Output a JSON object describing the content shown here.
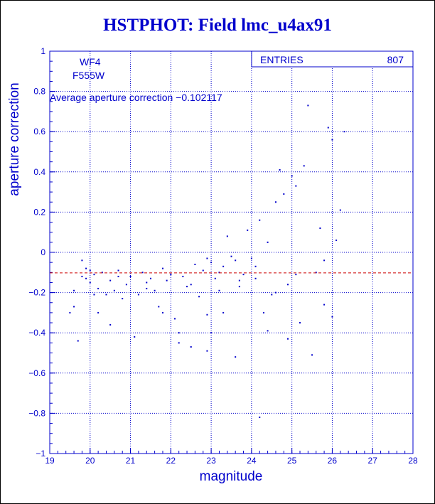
{
  "chart_data": {
    "type": "scatter",
    "title": "HSTPHOT: Field lmc_u4ax91",
    "xlabel": "magnitude",
    "ylabel": "aperture correction",
    "xlim": [
      19,
      28
    ],
    "ylim": [
      -1,
      1
    ],
    "x_ticks": [
      19,
      20,
      21,
      22,
      23,
      24,
      25,
      26,
      27,
      28
    ],
    "y_ticks": [
      -1,
      -0.8,
      -0.6,
      -0.4,
      -0.2,
      0,
      0.2,
      0.4,
      0.6,
      0.8,
      1
    ],
    "x_tick_labels": [
      "19",
      "20",
      "21",
      "22",
      "23",
      "24",
      "25",
      "26",
      "27",
      "28"
    ],
    "y_tick_labels": [
      "−1",
      "−0.8",
      "−0.6",
      "−0.4",
      "−0.2",
      "0",
      "0.2",
      "0.4",
      "0.6",
      "0.8",
      "1"
    ],
    "grid": true,
    "stats_box": {
      "label": "ENTRIES",
      "value": "807",
      "placement": "top-right"
    },
    "annotations": {
      "chip": "WF4",
      "filter": "F555W",
      "average_text": "Average aperture correction −0.102117"
    },
    "reference_line": {
      "y": -0.102117,
      "color": "#cc0000",
      "style": "dashed"
    },
    "marker_color": "#0000cc",
    "entries": 807,
    "points": [
      [
        19.5,
        -0.3
      ],
      [
        19.6,
        -0.27
      ],
      [
        19.7,
        -0.44
      ],
      [
        19.8,
        -0.12
      ],
      [
        19.9,
        -0.08
      ],
      [
        20.0,
        -0.15
      ],
      [
        20.1,
        -0.11
      ],
      [
        20.2,
        -0.18
      ],
      [
        19.9,
        -0.13
      ],
      [
        20.0,
        -0.09
      ],
      [
        20.3,
        -0.1
      ],
      [
        20.4,
        -0.21
      ],
      [
        20.5,
        -0.14
      ],
      [
        20.6,
        -0.19
      ],
      [
        20.7,
        -0.09
      ],
      [
        20.8,
        -0.23
      ],
      [
        20.2,
        -0.3
      ],
      [
        20.5,
        -0.36
      ],
      [
        20.9,
        -0.16
      ],
      [
        21.0,
        -0.12
      ],
      [
        21.1,
        -0.42
      ],
      [
        21.2,
        -0.21
      ],
      [
        21.3,
        -0.1
      ],
      [
        21.4,
        -0.15
      ],
      [
        21.5,
        -0.13
      ],
      [
        21.6,
        -0.19
      ],
      [
        21.7,
        -0.27
      ],
      [
        21.8,
        -0.08
      ],
      [
        21.9,
        -0.14
      ],
      [
        22.0,
        -0.11
      ],
      [
        22.1,
        -0.33
      ],
      [
        22.2,
        -0.4
      ],
      [
        22.3,
        -0.12
      ],
      [
        22.4,
        -0.17
      ],
      [
        22.5,
        -0.47
      ],
      [
        22.6,
        -0.06
      ],
      [
        22.7,
        -0.22
      ],
      [
        22.8,
        -0.09
      ],
      [
        22.9,
        -0.31
      ],
      [
        23.0,
        -0.05
      ],
      [
        23.1,
        -0.13
      ],
      [
        23.2,
        -0.19
      ],
      [
        23.3,
        -0.07
      ],
      [
        23.4,
        0.08
      ],
      [
        23.5,
        -0.02
      ],
      [
        23.6,
        -0.04
      ],
      [
        23.7,
        -0.14
      ],
      [
        23.8,
        -0.11
      ],
      [
        23.9,
        0.11
      ],
      [
        24.0,
        -0.03
      ],
      [
        24.1,
        -0.07
      ],
      [
        24.2,
        0.16
      ],
      [
        24.3,
        -0.3
      ],
      [
        24.4,
        0.05
      ],
      [
        24.5,
        -0.21
      ],
      [
        24.6,
        0.25
      ],
      [
        24.7,
        0.41
      ],
      [
        24.8,
        0.29
      ],
      [
        24.9,
        -0.16
      ],
      [
        25.0,
        0.38
      ],
      [
        25.1,
        0.33
      ],
      [
        25.2,
        -0.35
      ],
      [
        25.3,
        0.43
      ],
      [
        25.4,
        0.73
      ],
      [
        25.5,
        -0.51
      ],
      [
        25.6,
        -0.1
      ],
      [
        25.7,
        0.12
      ],
      [
        25.8,
        -0.26
      ],
      [
        25.9,
        0.62
      ],
      [
        26.0,
        0.56
      ],
      [
        26.1,
        0.06
      ],
      [
        26.2,
        0.21
      ],
      [
        26.3,
        0.6
      ],
      [
        22.9,
        -0.49
      ],
      [
        23.6,
        -0.52
      ],
      [
        24.2,
        -0.82
      ],
      [
        23.3,
        -0.3
      ],
      [
        22.2,
        -0.45
      ],
      [
        21.8,
        -0.3
      ],
      [
        23.0,
        -0.4
      ],
      [
        19.6,
        -0.19
      ],
      [
        19.8,
        -0.04
      ],
      [
        20.1,
        -0.21
      ],
      [
        20.7,
        -0.12
      ],
      [
        21.4,
        -0.18
      ],
      [
        22.5,
        -0.16
      ],
      [
        22.9,
        -0.03
      ],
      [
        23.2,
        -0.1
      ],
      [
        23.7,
        -0.17
      ],
      [
        24.1,
        -0.13
      ],
      [
        24.6,
        -0.2
      ],
      [
        25.1,
        -0.11
      ],
      [
        25.8,
        -0.04
      ],
      [
        26.0,
        -0.32
      ],
      [
        24.9,
        -0.43
      ],
      [
        24.4,
        -0.39
      ]
    ]
  }
}
